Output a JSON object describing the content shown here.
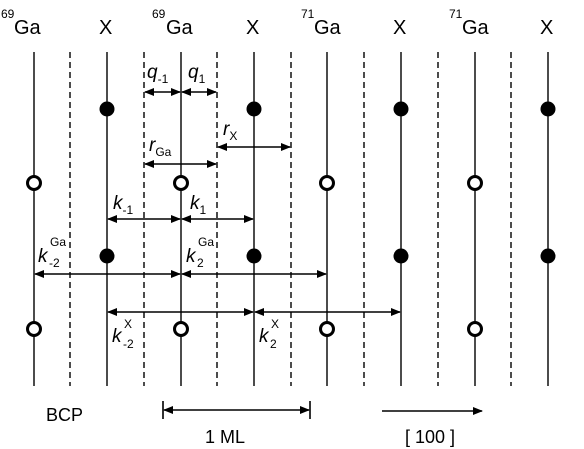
{
  "header": {
    "site_labels": [
      {
        "sup": "69",
        "main": "Ga"
      },
      {
        "sup": "",
        "main": "X"
      },
      {
        "sup": "69",
        "main": "Ga"
      },
      {
        "sup": "",
        "main": "X"
      },
      {
        "sup": "71",
        "main": "Ga"
      },
      {
        "sup": "",
        "main": "X"
      },
      {
        "sup": "71",
        "main": "Ga"
      },
      {
        "sup": "",
        "main": "X"
      }
    ]
  },
  "lines": {
    "solid": [
      "69Ga",
      "X",
      "69Ga",
      "X",
      "71Ga",
      "X",
      "71Ga",
      "X"
    ],
    "dashed": [
      "plane-1",
      "plane-2",
      "plane-3",
      "plane-4",
      "plane-5",
      "plane-6",
      "plane-7"
    ]
  },
  "parameters": {
    "q_minus1": {
      "base": "q",
      "sub": "-1"
    },
    "q_1": {
      "base": "q",
      "sub": "1"
    },
    "r_x": {
      "base": "r",
      "sub": "X"
    },
    "r_ga": {
      "base": "r",
      "sub": "Ga"
    },
    "k_minus1": {
      "base": "k",
      "sub": "-1"
    },
    "k_1": {
      "base": "k",
      "sub": "1"
    },
    "k_ga_minus2": {
      "base": "k",
      "sub": "-2",
      "sup": "Ga"
    },
    "k_ga_2": {
      "base": "k",
      "sub": "2",
      "sup": "Ga"
    },
    "k_x_minus2": {
      "base": "k",
      "sub": "-2",
      "sup": "X"
    },
    "k_x_2": {
      "base": "k",
      "sub": "2",
      "sup": "X"
    }
  },
  "footer": {
    "structure": "BCP",
    "scale": "1 ML",
    "direction": "[ 100 ]"
  },
  "colors": {
    "ink": "#000000",
    "background": "#ffffff"
  }
}
